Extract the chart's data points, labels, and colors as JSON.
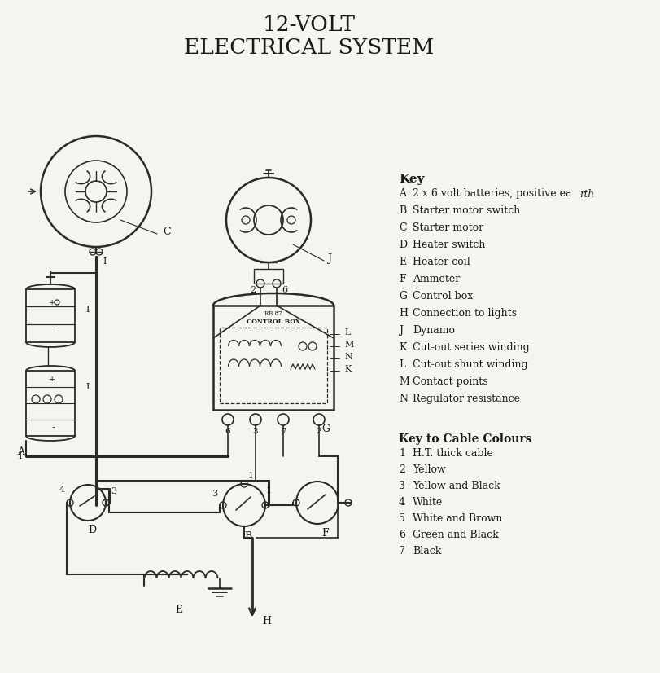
{
  "title_line1": "12-VOLT",
  "title_line2": "ELECTRICAL SYSTEM",
  "bg_color": "#f5f5f0",
  "text_color": "#1a1a1a",
  "line_color": "#2a2a2a",
  "key_items": [
    [
      "A",
      "2 x 6 volt batteries, positive ea",
      "rth"
    ],
    [
      "B",
      "Starter motor switch",
      ""
    ],
    [
      "C",
      "Starter motor",
      ""
    ],
    [
      "D",
      "Heater switch",
      ""
    ],
    [
      "E",
      "Heater coil",
      ""
    ],
    [
      "F",
      "Ammeter",
      ""
    ],
    [
      "G",
      "Control box",
      ""
    ],
    [
      "H",
      "Connection to lights",
      ""
    ],
    [
      "J",
      "Dynamo",
      ""
    ],
    [
      "K",
      "Cut-out series winding",
      ""
    ],
    [
      "L",
      "Cut-out shunt winding",
      ""
    ],
    [
      "M",
      "Contact points",
      ""
    ],
    [
      "N",
      "Regulator resistance",
      ""
    ]
  ],
  "cable_colour_title": "Key to Cable Colours",
  "cable_colours": [
    [
      "1",
      "H.T. thick cable"
    ],
    [
      "2",
      "Yellow"
    ],
    [
      "3",
      "Yellow and Black"
    ],
    [
      "4",
      "White"
    ],
    [
      "5",
      "White and Brown"
    ],
    [
      "6",
      "Green and Black"
    ],
    [
      "7",
      "Black"
    ]
  ]
}
